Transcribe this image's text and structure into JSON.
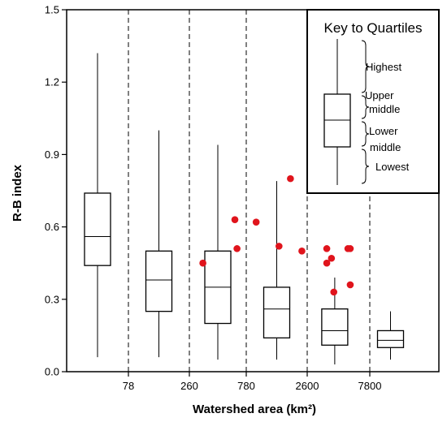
{
  "chart_data": {
    "type": "box",
    "xlabel": "Watershed area (km²)",
    "ylabel": "R-B index",
    "ylim": [
      0.0,
      1.5
    ],
    "yticks": [
      "0.0",
      "0.3",
      "0.6",
      "0.9",
      "1.2",
      "1.5"
    ],
    "y_tick_values": [
      0.0,
      0.3,
      0.6,
      0.9,
      1.2,
      1.5
    ],
    "bin_boundary_labels": [
      "78",
      "260",
      "780",
      "2600",
      "7800"
    ],
    "boxes": [
      {
        "whisker_low": 0.06,
        "q1": 0.44,
        "median": 0.56,
        "q3": 0.74,
        "whisker_high": 1.32
      },
      {
        "whisker_low": 0.06,
        "q1": 0.25,
        "median": 0.38,
        "q3": 0.5,
        "whisker_high": 1.0
      },
      {
        "whisker_low": 0.05,
        "q1": 0.2,
        "median": 0.35,
        "q3": 0.5,
        "whisker_high": 0.94
      },
      {
        "whisker_low": 0.05,
        "q1": 0.14,
        "median": 0.26,
        "q3": 0.35,
        "whisker_high": 0.79
      },
      {
        "whisker_low": 0.03,
        "q1": 0.11,
        "median": 0.17,
        "q3": 0.26,
        "whisker_high": 0.39
      },
      {
        "whisker_low": 0.05,
        "q1": 0.1,
        "median": 0.13,
        "q3": 0.17,
        "whisker_high": 0.25
      }
    ],
    "points": [
      {
        "bin": 2,
        "offset": -0.35,
        "y": 0.45
      },
      {
        "bin": 2,
        "offset": 0.4,
        "y": 0.63
      },
      {
        "bin": 2,
        "offset": 0.45,
        "y": 0.51
      },
      {
        "bin": 3,
        "offset": -0.45,
        "y": 0.62
      },
      {
        "bin": 3,
        "offset": 0.05,
        "y": 0.52
      },
      {
        "bin": 3,
        "offset": 0.3,
        "y": 0.8
      },
      {
        "bin": 3,
        "offset": 0.55,
        "y": 0.5
      },
      {
        "bin": 4,
        "offset": -0.25,
        "y": 0.51
      },
      {
        "bin": 4,
        "offset": -0.25,
        "y": 0.45
      },
      {
        "bin": 4,
        "offset": -0.15,
        "y": 0.47
      },
      {
        "bin": 4,
        "offset": -0.1,
        "y": 0.33
      },
      {
        "bin": 4,
        "offset": 0.2,
        "y": 0.51
      },
      {
        "bin": 4,
        "offset": 0.25,
        "y": 0.36
      },
      {
        "bin": 4,
        "offset": 0.25,
        "y": 0.51
      }
    ],
    "point_color": "#e0141c",
    "legend": {
      "title": "Key to Quartiles",
      "labels": [
        "Highest",
        "Upper middle",
        "Lower middle",
        "Lowest"
      ],
      "placement": "top-right"
    },
    "grid": false
  }
}
